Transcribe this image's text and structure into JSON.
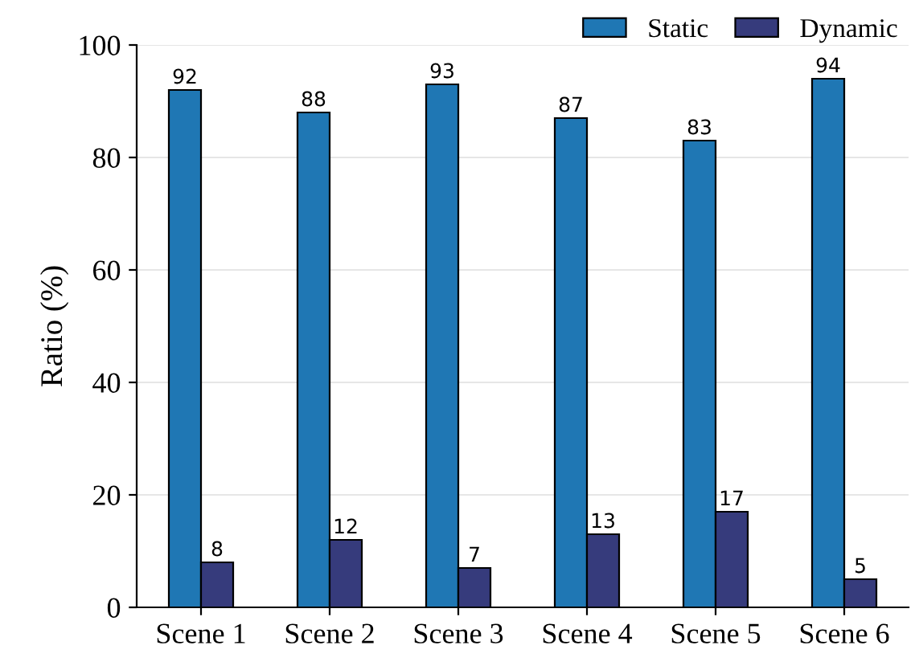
{
  "chart_data": {
    "type": "bar",
    "ylabel": "Ratio (%)",
    "categories": [
      "Scene 1",
      "Scene 2",
      "Scene 3",
      "Scene 4",
      "Scene 5",
      "Scene 6"
    ],
    "series": [
      {
        "name": "Static",
        "color": "#1f77b4",
        "values": [
          92,
          88,
          93,
          87,
          83,
          94
        ]
      },
      {
        "name": "Dynamic",
        "color": "#363b7c",
        "values": [
          8,
          12,
          7,
          13,
          17,
          5
        ]
      }
    ],
    "ylim": [
      0,
      100
    ],
    "yticks": [
      0,
      20,
      40,
      60,
      80,
      100
    ],
    "grid": "y",
    "legend": "top right",
    "data_labels": true
  }
}
